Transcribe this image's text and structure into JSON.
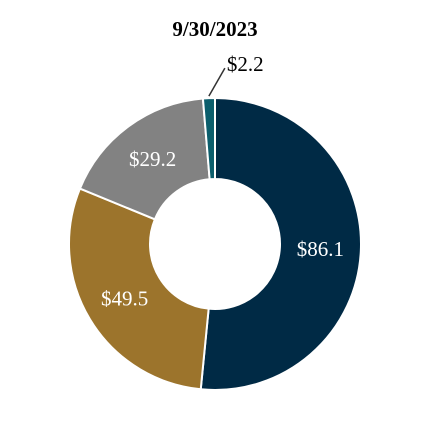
{
  "chart_data": {
    "type": "pie",
    "title": "9/30/2023",
    "hole": "donut",
    "slices": [
      {
        "label": "$86.1",
        "value": 86.1,
        "color": "#002a45",
        "label_color": "#ffffff"
      },
      {
        "label": "$49.5",
        "value": 49.5,
        "color": "#9c742c",
        "label_color": "#ffffff"
      },
      {
        "label": "$29.2",
        "value": 29.2,
        "color": "#828282",
        "label_color": "#ffffff"
      },
      {
        "label": "$2.2",
        "value": 2.2,
        "color": "#0b5e6c",
        "label_color": "#000000",
        "callout": true
      }
    ]
  }
}
